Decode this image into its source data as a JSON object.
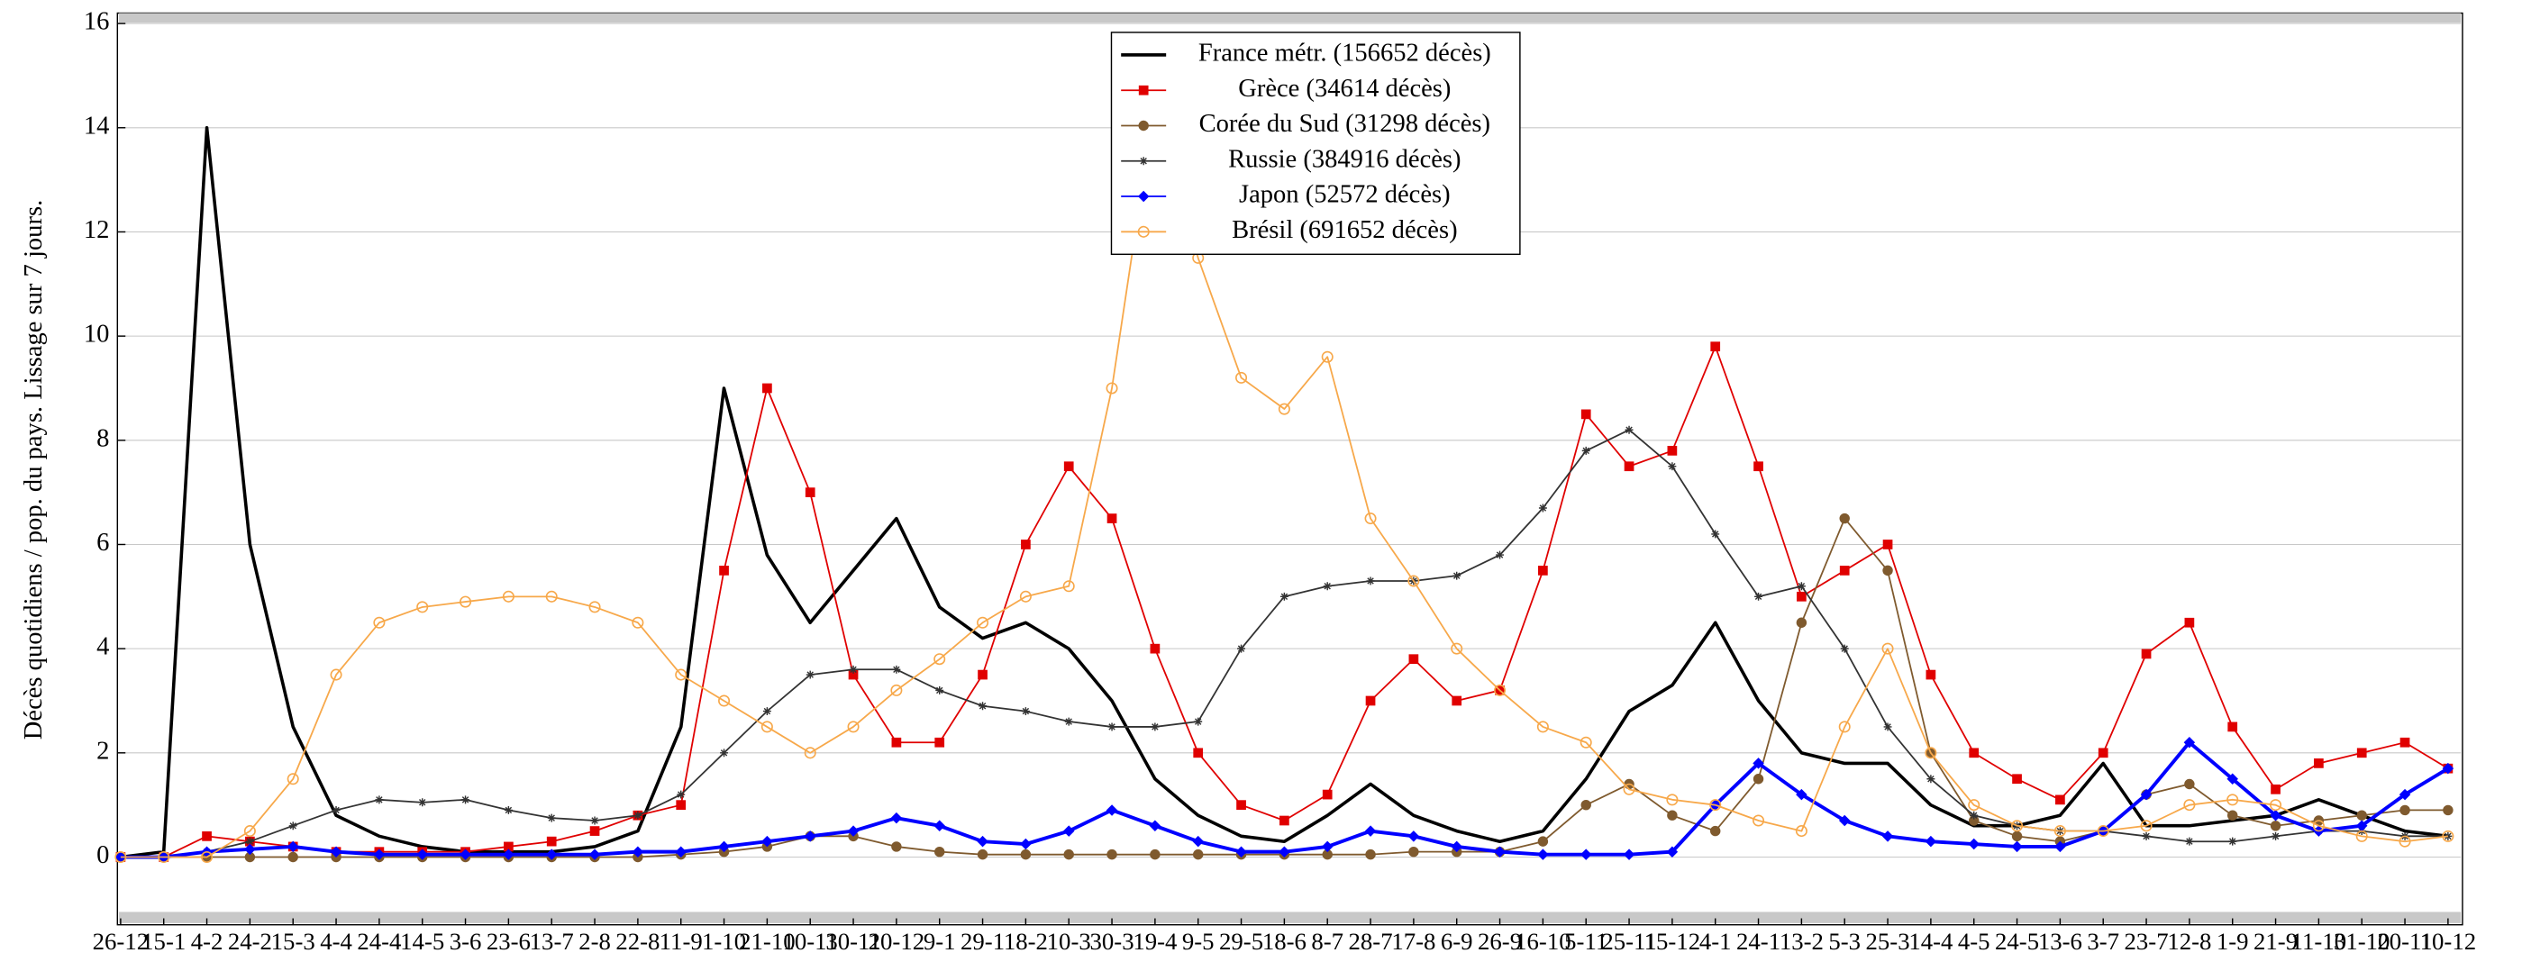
{
  "chart_data": {
    "type": "line",
    "y_label": "Décès quotidiens / pop. du pays. Lissage sur 7 jours.",
    "categories": [
      "26-12",
      "15-1",
      "4-2",
      "24-2",
      "15-3",
      "4-4",
      "24-4",
      "14-5",
      "3-6",
      "23-6",
      "13-7",
      "2-8",
      "22-8",
      "11-9",
      "1-10",
      "21-10",
      "10-11",
      "30-11",
      "20-12",
      "9-1",
      "29-1",
      "18-2",
      "10-3",
      "30-3",
      "19-4",
      "9-5",
      "29-5",
      "18-6",
      "8-7",
      "28-7",
      "17-8",
      "6-9",
      "26-9",
      "16-10",
      "5-11",
      "25-11",
      "15-12",
      "4-1",
      "24-1",
      "13-2",
      "5-3",
      "25-3",
      "14-4",
      "4-5",
      "24-5",
      "13-6",
      "3-7",
      "23-7",
      "12-8",
      "1-9",
      "21-9",
      "11-10",
      "31-10",
      "20-11",
      "10-12"
    ],
    "ylim": [
      -1.3,
      16.2
    ],
    "yticks": [
      0,
      2,
      4,
      6,
      8,
      10,
      12,
      14,
      16
    ],
    "grid": true,
    "legend": "top",
    "series": [
      {
        "name": "France métr. (156652 décès)",
        "color": "#000000",
        "marker": "none",
        "values": [
          0,
          0.1,
          14,
          6,
          2.5,
          0.8,
          0.4,
          0.2,
          0.1,
          0.1,
          0.1,
          0.2,
          0.5,
          2.5,
          9,
          5.8,
          4.5,
          5.5,
          6.5,
          4.8,
          4.2,
          4.5,
          4,
          3,
          1.5,
          0.8,
          0.4,
          0.3,
          0.8,
          1.4,
          0.8,
          0.5,
          0.3,
          0.5,
          1.5,
          2.8,
          3.3,
          4.5,
          3,
          2,
          1.8,
          1.8,
          1,
          0.6,
          0.6,
          0.8,
          1.8,
          0.6,
          0.6,
          0.7,
          0.8,
          1.1,
          0.8,
          0.5,
          0.4
        ]
      },
      {
        "name": "Grèce (34614 décès)",
        "color": "#e00000",
        "marker": "square",
        "values": [
          0,
          0,
          0.4,
          0.3,
          0.2,
          0.1,
          0.1,
          0.1,
          0.1,
          0.2,
          0.3,
          0.5,
          0.8,
          1,
          5.5,
          9,
          7,
          3.5,
          2.2,
          2.2,
          3.5,
          6,
          7.5,
          6.5,
          4,
          2,
          1,
          0.7,
          1.2,
          3,
          3.8,
          3,
          3.2,
          5.5,
          8.5,
          7.5,
          7.8,
          9.8,
          7.5,
          5,
          5.5,
          6,
          3.5,
          2,
          1.5,
          1.1,
          2,
          3.9,
          4.5,
          2.5,
          1.3,
          1.8,
          2,
          2.2,
          1.7
        ]
      },
      {
        "name": "Corée du Sud (31298 décès)",
        "color": "#7f5a2e",
        "marker": "circle",
        "values": [
          0,
          0,
          0,
          0,
          0,
          0,
          0,
          0,
          0,
          0,
          0,
          0,
          0,
          0.05,
          0.1,
          0.2,
          0.4,
          0.4,
          0.2,
          0.1,
          0.05,
          0.05,
          0.05,
          0.05,
          0.05,
          0.05,
          0.05,
          0.05,
          0.05,
          0.05,
          0.1,
          0.1,
          0.1,
          0.3,
          1,
          1.4,
          0.8,
          0.5,
          1.5,
          4.5,
          6.5,
          5.5,
          2,
          0.7,
          0.4,
          0.3,
          0.5,
          1.2,
          1.4,
          0.8,
          0.6,
          0.7,
          0.8,
          0.9,
          0.9
        ]
      },
      {
        "name": "Russie (384916 décès)",
        "color": "#333333",
        "marker": "star",
        "values": [
          0,
          0,
          0.1,
          0.3,
          0.6,
          0.9,
          1.1,
          1.05,
          1.1,
          0.9,
          0.75,
          0.7,
          0.8,
          1.2,
          2,
          2.8,
          3.5,
          3.6,
          3.6,
          3.2,
          2.9,
          2.8,
          2.6,
          2.5,
          2.5,
          2.6,
          4,
          5,
          5.2,
          5.3,
          5.3,
          5.4,
          5.8,
          6.7,
          7.8,
          8.2,
          7.5,
          6.2,
          5,
          5.2,
          4,
          2.5,
          1.5,
          0.8,
          0.6,
          0.5,
          0.5,
          0.4,
          0.3,
          0.3,
          0.4,
          0.5,
          0.5,
          0.4,
          0.4
        ]
      },
      {
        "name": "Japon (52572 décès)",
        "color": "#0000ff",
        "marker": "diamond",
        "values": [
          0,
          0,
          0.1,
          0.15,
          0.2,
          0.1,
          0.05,
          0.05,
          0.05,
          0.05,
          0.05,
          0.05,
          0.1,
          0.1,
          0.2,
          0.3,
          0.4,
          0.5,
          0.75,
          0.6,
          0.3,
          0.25,
          0.5,
          0.9,
          0.6,
          0.3,
          0.1,
          0.1,
          0.2,
          0.5,
          0.4,
          0.2,
          0.1,
          0.05,
          0.05,
          0.05,
          0.1,
          1,
          1.8,
          1.2,
          0.7,
          0.4,
          0.3,
          0.25,
          0.2,
          0.2,
          0.5,
          1.2,
          2.2,
          1.5,
          0.8,
          0.5,
          0.6,
          1.2,
          1.7
        ]
      },
      {
        "name": "Brésil (691652 décès)",
        "color": "#f7a84a",
        "marker": "open-circle",
        "values": [
          0,
          0,
          0,
          0.5,
          1.5,
          3.5,
          4.5,
          4.8,
          4.9,
          5,
          5,
          4.8,
          4.5,
          3.5,
          3,
          2.5,
          2,
          2.5,
          3.2,
          3.8,
          4.5,
          5,
          5.2,
          9,
          14.5,
          11.5,
          9.2,
          8.6,
          9.6,
          6.5,
          5.3,
          4,
          3.2,
          2.5,
          2.2,
          1.3,
          1.1,
          1,
          0.7,
          0.5,
          2.5,
          4,
          2,
          1,
          0.6,
          0.5,
          0.5,
          0.6,
          1,
          1.1,
          1,
          0.6,
          0.4,
          0.3,
          0.4
        ]
      }
    ]
  }
}
